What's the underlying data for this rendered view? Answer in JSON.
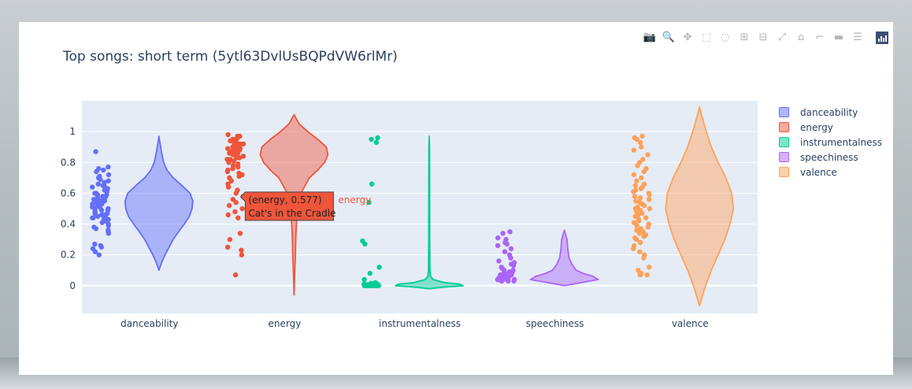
{
  "page": {
    "title": "Top songs: short term (5ytl63DvlUsBQPdVW6rlMr)"
  },
  "modebar": {
    "buttons": [
      {
        "icon": "camera-icon",
        "glyph": "📷"
      },
      {
        "icon": "zoom-icon",
        "glyph": "🔍"
      },
      {
        "icon": "pan-icon",
        "glyph": "✥"
      },
      {
        "icon": "box-select-icon",
        "glyph": "⬚"
      },
      {
        "icon": "lasso-select-icon",
        "glyph": "◌"
      },
      {
        "icon": "zoom-in-icon",
        "glyph": "⊞"
      },
      {
        "icon": "zoom-out-icon",
        "glyph": "⊟"
      },
      {
        "icon": "autoscale-icon",
        "glyph": "⤢"
      },
      {
        "icon": "reset-axes-icon",
        "glyph": "⌂"
      },
      {
        "icon": "spike-lines-icon",
        "glyph": "⌐"
      },
      {
        "icon": "hover-closest-icon",
        "glyph": "▬"
      },
      {
        "icon": "hover-compare-icon",
        "glyph": "☰"
      }
    ],
    "logo_icon": "plotly-logo-icon"
  },
  "chart_data": {
    "type": "violin",
    "title": "Top songs: short term (5ytl63DvlUsBQPdVW6rlMr)",
    "categories": [
      "danceability",
      "energy",
      "instrumentalness",
      "speechiness",
      "valence"
    ],
    "ylim": [
      -0.18,
      1.2
    ],
    "yticks": [
      0,
      0.2,
      0.4,
      0.6,
      0.8,
      1
    ],
    "ytick_labels": [
      "0",
      "0.2",
      "0.4",
      "0.6",
      "0.8",
      "1"
    ],
    "grid": true,
    "legend_position": "right",
    "series": [
      {
        "name": "danceability",
        "color": "#636efa",
        "points": [
          0.87,
          0.77,
          0.76,
          0.75,
          0.74,
          0.72,
          0.71,
          0.7,
          0.69,
          0.68,
          0.67,
          0.66,
          0.65,
          0.65,
          0.64,
          0.63,
          0.62,
          0.61,
          0.6,
          0.6,
          0.59,
          0.59,
          0.58,
          0.58,
          0.57,
          0.57,
          0.56,
          0.56,
          0.55,
          0.55,
          0.54,
          0.54,
          0.53,
          0.53,
          0.52,
          0.52,
          0.51,
          0.51,
          0.5,
          0.5,
          0.49,
          0.49,
          0.48,
          0.48,
          0.47,
          0.47,
          0.46,
          0.46,
          0.45,
          0.45,
          0.44,
          0.44,
          0.43,
          0.43,
          0.42,
          0.41,
          0.4,
          0.39,
          0.38,
          0.37,
          0.36,
          0.35,
          0.34,
          0.27,
          0.26,
          0.25,
          0.24,
          0.22,
          0.2
        ],
        "density": [
          [
            0.1,
            0.0
          ],
          [
            0.15,
            0.08
          ],
          [
            0.2,
            0.18
          ],
          [
            0.25,
            0.3
          ],
          [
            0.3,
            0.42
          ],
          [
            0.35,
            0.58
          ],
          [
            0.4,
            0.75
          ],
          [
            0.45,
            0.9
          ],
          [
            0.5,
            0.98
          ],
          [
            0.55,
            1.0
          ],
          [
            0.6,
            0.92
          ],
          [
            0.65,
            0.68
          ],
          [
            0.7,
            0.42
          ],
          [
            0.75,
            0.24
          ],
          [
            0.8,
            0.14
          ],
          [
            0.85,
            0.09
          ],
          [
            0.9,
            0.05
          ],
          [
            0.97,
            0.0
          ]
        ]
      },
      {
        "name": "energy",
        "color": "#ef553b",
        "points": [
          0.98,
          0.97,
          0.97,
          0.96,
          0.95,
          0.95,
          0.94,
          0.94,
          0.93,
          0.93,
          0.92,
          0.92,
          0.91,
          0.91,
          0.9,
          0.9,
          0.9,
          0.89,
          0.89,
          0.88,
          0.88,
          0.87,
          0.87,
          0.86,
          0.86,
          0.85,
          0.85,
          0.84,
          0.84,
          0.83,
          0.83,
          0.82,
          0.82,
          0.81,
          0.8,
          0.79,
          0.78,
          0.77,
          0.76,
          0.75,
          0.74,
          0.73,
          0.72,
          0.71,
          0.7,
          0.68,
          0.66,
          0.64,
          0.62,
          0.6,
          0.58,
          0.56,
          0.54,
          0.52,
          0.5,
          0.48,
          0.46,
          0.44,
          0.34,
          0.3,
          0.25,
          0.23,
          0.2,
          0.07
        ],
        "density": [
          [
            -0.06,
            0.0
          ],
          [
            0.1,
            0.02
          ],
          [
            0.2,
            0.04
          ],
          [
            0.3,
            0.05
          ],
          [
            0.4,
            0.07
          ],
          [
            0.5,
            0.1
          ],
          [
            0.6,
            0.2
          ],
          [
            0.7,
            0.45
          ],
          [
            0.75,
            0.7
          ],
          [
            0.8,
            0.9
          ],
          [
            0.85,
            1.0
          ],
          [
            0.9,
            0.95
          ],
          [
            0.95,
            0.7
          ],
          [
            1.0,
            0.4
          ],
          [
            1.05,
            0.15
          ],
          [
            1.11,
            0.0
          ]
        ]
      },
      {
        "name": "instrumentalness",
        "color": "#00cc96",
        "points": [
          0.96,
          0.95,
          0.93,
          0.66,
          0.54,
          0.29,
          0.27,
          0.12,
          0.08,
          0.04,
          0.02,
          0.015,
          0.012,
          0.01,
          0.01,
          0.008,
          0.008,
          0.006,
          0.006,
          0.005,
          0.005,
          0.004,
          0.004,
          0.003,
          0.003,
          0.002,
          0.002,
          0.002,
          0.001,
          0.001,
          0.001,
          0.001,
          0,
          0,
          0,
          0,
          0,
          0,
          0,
          0,
          0,
          0,
          0,
          0,
          0,
          0
        ],
        "density": [
          [
            -0.02,
            0.0
          ],
          [
            -0.01,
            0.4
          ],
          [
            0.0,
            1.0
          ],
          [
            0.01,
            0.9
          ],
          [
            0.02,
            0.45
          ],
          [
            0.04,
            0.12
          ],
          [
            0.06,
            0.04
          ],
          [
            0.1,
            0.02
          ],
          [
            0.3,
            0.015
          ],
          [
            0.5,
            0.015
          ],
          [
            0.7,
            0.012
          ],
          [
            0.9,
            0.01
          ],
          [
            0.97,
            0.0
          ]
        ]
      },
      {
        "name": "speechiness",
        "color": "#ab63fa",
        "points": [
          0.35,
          0.34,
          0.31,
          0.3,
          0.28,
          0.27,
          0.26,
          0.24,
          0.22,
          0.2,
          0.18,
          0.16,
          0.15,
          0.14,
          0.13,
          0.12,
          0.11,
          0.1,
          0.1,
          0.09,
          0.09,
          0.08,
          0.08,
          0.07,
          0.07,
          0.07,
          0.06,
          0.06,
          0.06,
          0.05,
          0.05,
          0.05,
          0.05,
          0.04,
          0.04,
          0.04,
          0.04,
          0.04,
          0.03,
          0.03,
          0.03,
          0.03,
          0.03
        ],
        "density": [
          [
            0.0,
            0.0
          ],
          [
            0.02,
            0.5
          ],
          [
            0.04,
            1.0
          ],
          [
            0.06,
            0.85
          ],
          [
            0.08,
            0.55
          ],
          [
            0.1,
            0.35
          ],
          [
            0.14,
            0.22
          ],
          [
            0.18,
            0.14
          ],
          [
            0.24,
            0.1
          ],
          [
            0.3,
            0.08
          ],
          [
            0.36,
            0.0
          ]
        ]
      },
      {
        "name": "valence",
        "color": "#ffa15a",
        "points": [
          0.97,
          0.96,
          0.95,
          0.93,
          0.9,
          0.88,
          0.85,
          0.82,
          0.8,
          0.78,
          0.76,
          0.74,
          0.72,
          0.7,
          0.68,
          0.66,
          0.65,
          0.64,
          0.63,
          0.62,
          0.61,
          0.6,
          0.59,
          0.58,
          0.57,
          0.56,
          0.55,
          0.54,
          0.53,
          0.52,
          0.51,
          0.5,
          0.5,
          0.49,
          0.48,
          0.47,
          0.46,
          0.45,
          0.44,
          0.43,
          0.42,
          0.41,
          0.4,
          0.39,
          0.38,
          0.37,
          0.36,
          0.35,
          0.34,
          0.33,
          0.32,
          0.31,
          0.3,
          0.28,
          0.26,
          0.24,
          0.22,
          0.2,
          0.18,
          0.12,
          0.1,
          0.08,
          0.08,
          0.07,
          0.07
        ],
        "density": [
          [
            -0.13,
            0.0
          ],
          [
            0.0,
            0.18
          ],
          [
            0.1,
            0.35
          ],
          [
            0.2,
            0.55
          ],
          [
            0.3,
            0.75
          ],
          [
            0.4,
            0.9
          ],
          [
            0.5,
            1.0
          ],
          [
            0.6,
            0.95
          ],
          [
            0.7,
            0.78
          ],
          [
            0.8,
            0.55
          ],
          [
            0.9,
            0.35
          ],
          [
            1.0,
            0.2
          ],
          [
            1.1,
            0.07
          ],
          [
            1.16,
            0.0
          ]
        ]
      }
    ],
    "hover": {
      "series": "energy",
      "value": 0.577,
      "line1": "(energy, 0.577)",
      "line2": "Cat's in the Cradle",
      "side_label": "energy"
    }
  }
}
